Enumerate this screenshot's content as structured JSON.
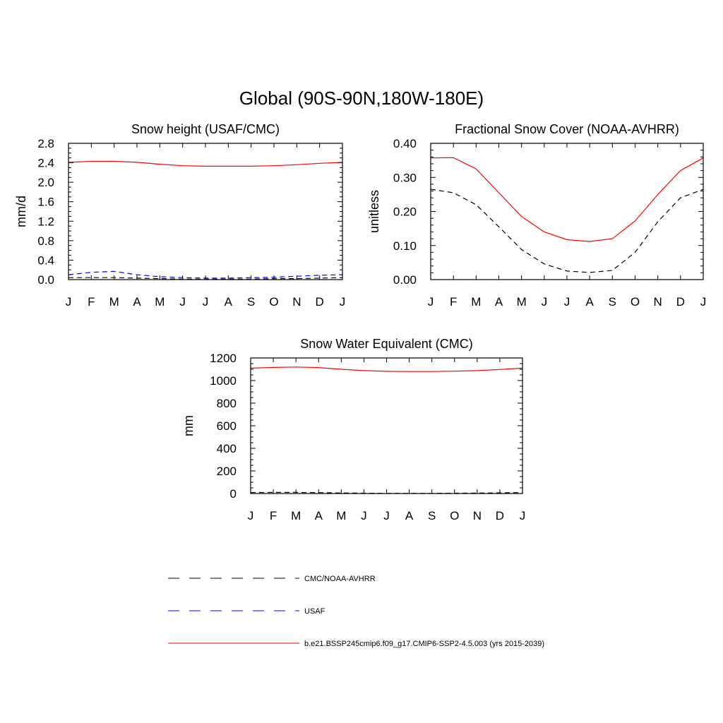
{
  "figure": {
    "title": "Global (90S-90N,180W-180E)"
  },
  "chart_data": [
    {
      "type": "line",
      "title": "Snow height (USAF/CMC)",
      "xlabel": "",
      "ylabel": "mm/d",
      "categories": [
        "J",
        "F",
        "M",
        "A",
        "M",
        "J",
        "J",
        "A",
        "S",
        "O",
        "N",
        "D",
        "J"
      ],
      "ylim": [
        0,
        2.8
      ],
      "yticks": [
        0.0,
        0.4,
        0.8,
        1.2,
        1.6,
        2.0,
        2.4,
        2.8
      ],
      "ytick_labels": [
        "0.0",
        "0.4",
        "0.8",
        "1.2",
        "1.6",
        "2.0",
        "2.4",
        "2.8"
      ],
      "grid": false,
      "series": [
        {
          "name": "b.e21.BSSP245cmip6.f09_g17.CMIP6-SSP2-4.5.003 (yrs 2015-2039)",
          "color": "#ff0000",
          "dash": "solid",
          "values": [
            2.41,
            2.43,
            2.43,
            2.41,
            2.37,
            2.34,
            2.33,
            2.33,
            2.33,
            2.34,
            2.36,
            2.39,
            2.41
          ]
        },
        {
          "name": "USAF",
          "color": "#0000ff",
          "dash": "dashed",
          "values": [
            0.1,
            0.15,
            0.17,
            0.1,
            0.06,
            0.04,
            0.03,
            0.03,
            0.04,
            0.05,
            0.07,
            0.09,
            0.1
          ]
        },
        {
          "name": "CMC/NOAA-AVHRR",
          "color": "#000000",
          "dash": "dashed",
          "values": [
            0.04,
            0.04,
            0.04,
            0.03,
            0.02,
            0.01,
            0.01,
            0.01,
            0.01,
            0.02,
            0.02,
            0.03,
            0.04
          ]
        }
      ]
    },
    {
      "type": "line",
      "title": "Fractional Snow Cover (NOAA-AVHRR)",
      "xlabel": "",
      "ylabel": "unitless",
      "categories": [
        "J",
        "F",
        "M",
        "A",
        "M",
        "J",
        "J",
        "A",
        "S",
        "O",
        "N",
        "D",
        "J"
      ],
      "ylim": [
        0,
        0.4
      ],
      "yticks": [
        0.0,
        0.1,
        0.2,
        0.3,
        0.4
      ],
      "ytick_labels": [
        "0.00",
        "0.10",
        "0.20",
        "0.30",
        "0.40"
      ],
      "grid": false,
      "series": [
        {
          "name": "b.e21.BSSP245cmip6.f09_g17.CMIP6-SSP2-4.5.003 (yrs 2015-2039)",
          "color": "#ff0000",
          "dash": "solid",
          "values": [
            0.357,
            0.358,
            0.325,
            0.255,
            0.185,
            0.14,
            0.117,
            0.112,
            0.12,
            0.172,
            0.25,
            0.32,
            0.357
          ]
        },
        {
          "name": "CMC/NOAA-AVHRR",
          "color": "#000000",
          "dash": "dashed",
          "values": [
            0.265,
            0.255,
            0.22,
            0.155,
            0.088,
            0.046,
            0.025,
            0.021,
            0.027,
            0.08,
            0.17,
            0.24,
            0.265
          ]
        }
      ]
    },
    {
      "type": "line",
      "title": "Snow Water Equivalent (CMC)",
      "xlabel": "",
      "ylabel": "mm",
      "categories": [
        "J",
        "F",
        "M",
        "A",
        "M",
        "J",
        "J",
        "A",
        "S",
        "O",
        "N",
        "D",
        "J"
      ],
      "ylim": [
        0,
        1200
      ],
      "yticks": [
        0,
        200,
        400,
        600,
        800,
        1000,
        1200
      ],
      "ytick_labels": [
        "0",
        "200",
        "400",
        "600",
        "800",
        "1000",
        "1200"
      ],
      "grid": false,
      "series": [
        {
          "name": "b.e21.BSSP245cmip6.f09_g17.CMIP6-SSP2-4.5.003 (yrs 2015-2039)",
          "color": "#ff0000",
          "dash": "solid",
          "values": [
            1110,
            1116,
            1120,
            1115,
            1100,
            1088,
            1082,
            1080,
            1080,
            1083,
            1088,
            1098,
            1110
          ]
        },
        {
          "name": "CMC/NOAA-AVHRR",
          "color": "#000000",
          "dash": "dashed",
          "values": [
            9,
            10,
            10,
            8,
            5,
            3,
            2,
            2,
            2,
            3,
            4,
            6,
            9
          ]
        }
      ]
    }
  ],
  "legend": {
    "placement": "bottom-center",
    "entries": [
      {
        "label": "CMC/NOAA-AVHRR",
        "color": "#000000",
        "dash": "dashed"
      },
      {
        "label": "USAF",
        "color": "#0000ff",
        "dash": "dashed"
      },
      {
        "label": "b.e21.BSSP245cmip6.f09_g17.CMIP6-SSP2-4.5.003 (yrs 2015-2039)",
        "color": "#ff0000",
        "dash": "solid"
      }
    ]
  }
}
